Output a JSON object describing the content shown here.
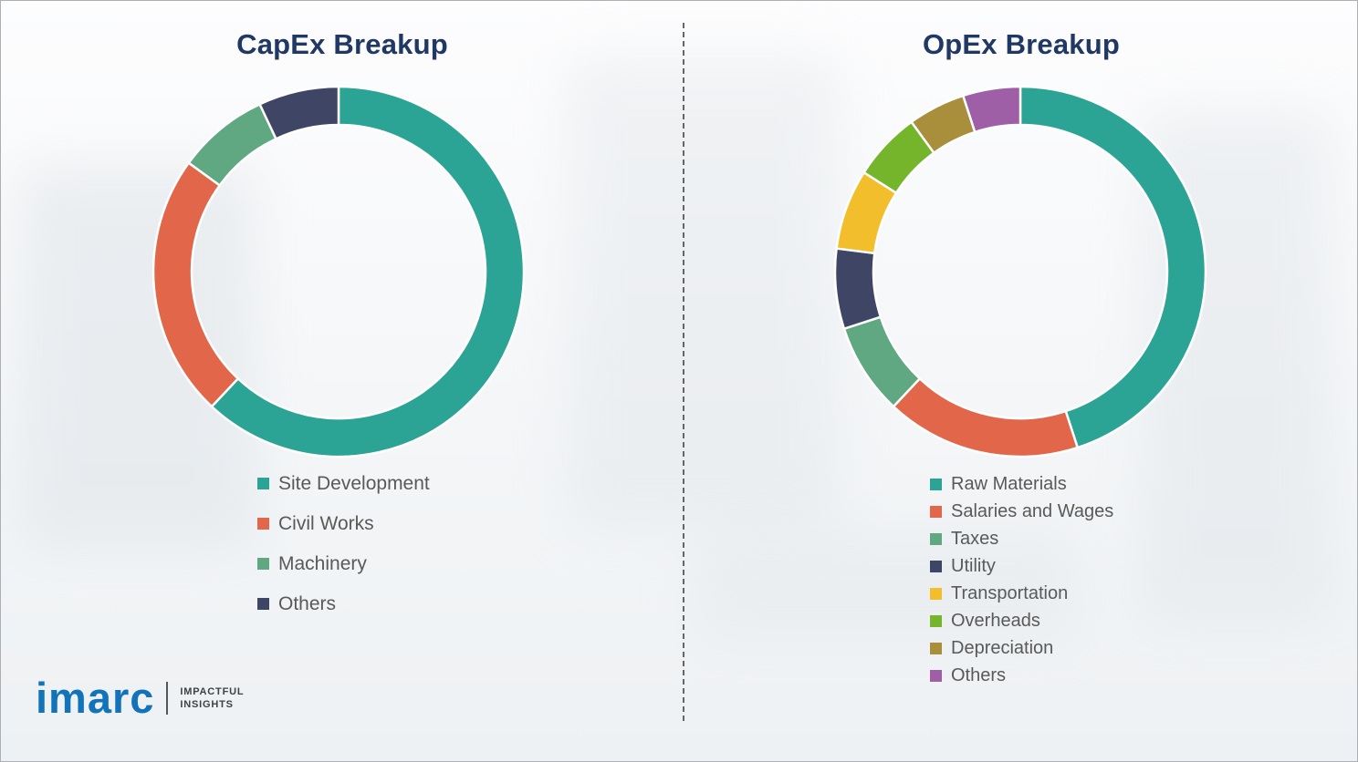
{
  "chart_data": [
    {
      "type": "donut",
      "title": "CapEx Breakup",
      "labels": [
        "Site Development",
        "Civil Works",
        "Machinery",
        "Others"
      ],
      "values": [
        62,
        23,
        8,
        7
      ],
      "colors": [
        "#2BA495",
        "#E2674A",
        "#5FA881",
        "#3F4565"
      ],
      "legend_position": "bottom-left",
      "start_angle_deg": 0,
      "direction": "clockwise"
    },
    {
      "type": "donut",
      "title": "OpEx Breakup",
      "labels": [
        "Raw Materials",
        "Salaries and Wages",
        "Taxes",
        "Utility",
        "Transportation",
        "Overheads",
        "Depreciation",
        "Others"
      ],
      "values": [
        45,
        17,
        8,
        7,
        7,
        6,
        5,
        5
      ],
      "colors": [
        "#2BA495",
        "#E2674A",
        "#5FA881",
        "#3F4565",
        "#F2BE2B",
        "#74B52C",
        "#A98E3B",
        "#9E5FA7"
      ],
      "legend_position": "bottom-left",
      "start_angle_deg": 0,
      "direction": "clockwise"
    }
  ],
  "logo": {
    "brand": "imarc",
    "tagline": [
      "IMPACTFUL",
      "INSIGHTS"
    ]
  },
  "style_colors": {
    "title_text": "#1F3864",
    "legend_text": "#595959",
    "brand_blue": "#1273B8",
    "divider_gray": "#63676B"
  }
}
